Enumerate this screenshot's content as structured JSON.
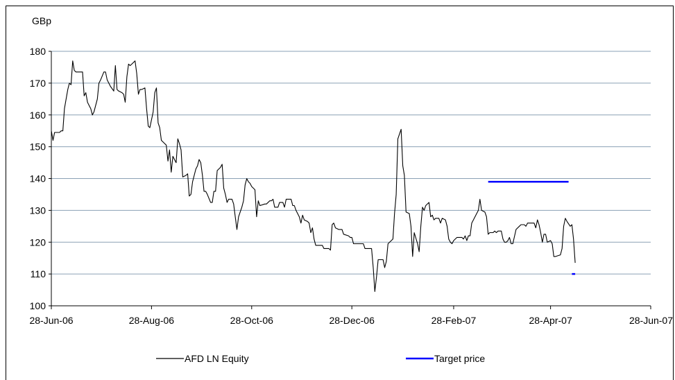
{
  "chart_data": {
    "type": "line",
    "ylabel": "GBp",
    "ylim": [
      100,
      180
    ],
    "yticks": [
      100,
      110,
      120,
      130,
      140,
      150,
      160,
      170,
      180
    ],
    "xlim": [
      "2006-06-28",
      "2007-06-28"
    ],
    "xticks": [
      {
        "date": "2006-06-28",
        "label": "28-Jun-06"
      },
      {
        "date": "2006-08-28",
        "label": "28-Aug-06"
      },
      {
        "date": "2006-10-28",
        "label": "28-Oct-06"
      },
      {
        "date": "2006-12-28",
        "label": "28-Dec-06"
      },
      {
        "date": "2007-02-28",
        "label": "28-Feb-07"
      },
      {
        "date": "2007-04-28",
        "label": "28-Apr-07"
      },
      {
        "date": "2007-06-28",
        "label": "28-Jun-07"
      }
    ],
    "grid": "horizontal",
    "legend": "bottom",
    "series": [
      {
        "name": "AFD LN Equity",
        "color": "#000000",
        "points": [
          [
            "2006-06-28",
            155
          ],
          [
            "2006-06-29",
            152
          ],
          [
            "2006-06-30",
            154.5
          ],
          [
            "2006-07-03",
            154.5
          ],
          [
            "2006-07-04",
            155
          ],
          [
            "2006-07-05",
            155
          ],
          [
            "2006-07-06",
            162
          ],
          [
            "2006-07-08",
            168
          ],
          [
            "2006-07-09",
            170
          ],
          [
            "2006-07-10",
            169.5
          ],
          [
            "2006-07-11",
            177
          ],
          [
            "2006-07-12",
            174
          ],
          [
            "2006-07-13",
            173.5
          ],
          [
            "2006-07-16",
            173.5
          ],
          [
            "2006-07-17",
            173.5
          ],
          [
            "2006-07-18",
            166
          ],
          [
            "2006-07-19",
            167
          ],
          [
            "2006-07-20",
            164
          ],
          [
            "2006-07-21",
            163
          ],
          [
            "2006-07-22",
            162
          ],
          [
            "2006-07-23",
            160
          ],
          [
            "2006-07-24",
            161
          ],
          [
            "2006-07-26",
            165
          ],
          [
            "2006-07-27",
            170
          ],
          [
            "2006-07-28",
            171
          ],
          [
            "2006-07-30",
            173.5
          ],
          [
            "2006-07-31",
            173.5
          ],
          [
            "2006-08-01",
            171
          ],
          [
            "2006-08-03",
            169
          ],
          [
            "2006-08-05",
            167.5
          ],
          [
            "2006-08-06",
            175.5
          ],
          [
            "2006-08-07",
            168
          ],
          [
            "2006-08-08",
            167.5
          ],
          [
            "2006-08-10",
            167
          ],
          [
            "2006-08-11",
            166.5
          ],
          [
            "2006-08-12",
            164
          ],
          [
            "2006-08-13",
            172
          ],
          [
            "2006-08-14",
            176
          ],
          [
            "2006-08-15",
            175.5
          ],
          [
            "2006-08-16",
            176
          ],
          [
            "2006-08-18",
            177
          ],
          [
            "2006-08-19",
            173
          ],
          [
            "2006-08-20",
            166.5
          ],
          [
            "2006-08-21",
            168
          ],
          [
            "2006-08-22",
            168
          ],
          [
            "2006-08-24",
            168.5
          ],
          [
            "2006-08-25",
            162
          ],
          [
            "2006-08-26",
            156.5
          ],
          [
            "2006-08-27",
            156
          ],
          [
            "2006-08-29",
            161
          ],
          [
            "2006-08-30",
            167
          ],
          [
            "2006-08-31",
            168.5
          ],
          [
            "2006-09-01",
            157.5
          ],
          [
            "2006-09-02",
            156
          ],
          [
            "2006-09-03",
            152
          ],
          [
            "2006-09-05",
            151
          ],
          [
            "2006-09-06",
            150.5
          ],
          [
            "2006-09-07",
            145.5
          ],
          [
            "2006-09-08",
            149
          ],
          [
            "2006-09-09",
            142
          ],
          [
            "2006-09-10",
            147
          ],
          [
            "2006-09-11",
            146
          ],
          [
            "2006-09-12",
            145
          ],
          [
            "2006-09-13",
            152.5
          ],
          [
            "2006-09-14",
            151
          ],
          [
            "2006-09-15",
            149
          ],
          [
            "2006-09-16",
            140.5
          ],
          [
            "2006-09-18",
            141
          ],
          [
            "2006-09-19",
            141.5
          ],
          [
            "2006-09-20",
            134.5
          ],
          [
            "2006-09-21",
            135
          ],
          [
            "2006-09-22",
            139
          ],
          [
            "2006-09-24",
            143
          ],
          [
            "2006-09-25",
            144
          ],
          [
            "2006-09-26",
            146
          ],
          [
            "2006-09-27",
            145
          ],
          [
            "2006-09-28",
            141
          ],
          [
            "2006-09-29",
            136
          ],
          [
            "2006-09-30",
            136
          ],
          [
            "2006-10-01",
            135
          ],
          [
            "2006-10-03",
            132.5
          ],
          [
            "2006-10-04",
            132.5
          ],
          [
            "2006-10-05",
            136
          ],
          [
            "2006-10-06",
            136
          ],
          [
            "2006-10-07",
            142.5
          ],
          [
            "2006-10-09",
            143.5
          ],
          [
            "2006-10-10",
            144.5
          ],
          [
            "2006-10-11",
            137
          ],
          [
            "2006-10-12",
            135
          ],
          [
            "2006-10-13",
            132.5
          ],
          [
            "2006-10-14",
            133.5
          ],
          [
            "2006-10-16",
            133.5
          ],
          [
            "2006-10-17",
            132
          ],
          [
            "2006-10-18",
            128
          ],
          [
            "2006-10-19",
            124
          ],
          [
            "2006-10-20",
            128
          ],
          [
            "2006-10-22",
            131
          ],
          [
            "2006-10-23",
            133
          ],
          [
            "2006-10-24",
            138
          ],
          [
            "2006-10-25",
            140
          ],
          [
            "2006-10-26",
            139
          ],
          [
            "2006-10-27",
            138.5
          ],
          [
            "2006-10-28",
            137.5
          ],
          [
            "2006-10-30",
            136.5
          ],
          [
            "2006-10-31",
            128
          ],
          [
            "2006-11-01",
            133
          ],
          [
            "2006-11-02",
            131.5
          ],
          [
            "2006-11-05",
            132
          ],
          [
            "2006-11-06",
            132
          ],
          [
            "2006-11-08",
            133
          ],
          [
            "2006-11-09",
            133
          ],
          [
            "2006-11-10",
            133.5
          ],
          [
            "2006-11-11",
            131
          ],
          [
            "2006-11-13",
            131
          ],
          [
            "2006-11-14",
            132.5
          ],
          [
            "2006-11-16",
            132.5
          ],
          [
            "2006-11-17",
            131
          ],
          [
            "2006-11-18",
            133.5
          ],
          [
            "2006-11-21",
            133.5
          ],
          [
            "2006-11-22",
            131.5
          ],
          [
            "2006-11-23",
            131.5
          ],
          [
            "2006-11-24",
            130
          ],
          [
            "2006-11-26",
            128
          ],
          [
            "2006-11-27",
            126
          ],
          [
            "2006-11-28",
            128.5
          ],
          [
            "2006-11-29",
            127
          ],
          [
            "2006-12-01",
            126.5
          ],
          [
            "2006-12-02",
            126
          ],
          [
            "2006-12-03",
            123
          ],
          [
            "2006-12-04",
            124.5
          ],
          [
            "2006-12-05",
            121
          ],
          [
            "2006-12-06",
            119
          ],
          [
            "2006-12-10",
            119
          ],
          [
            "2006-12-11",
            118
          ],
          [
            "2006-12-14",
            118
          ],
          [
            "2006-12-15",
            117.5
          ],
          [
            "2006-12-16",
            125.5
          ],
          [
            "2006-12-17",
            126
          ],
          [
            "2006-12-18",
            124.5
          ],
          [
            "2006-12-20",
            124
          ],
          [
            "2006-12-22",
            124
          ],
          [
            "2006-12-23",
            122.5
          ],
          [
            "2006-12-26",
            122
          ],
          [
            "2006-12-27",
            121.5
          ],
          [
            "2006-12-28",
            121.5
          ],
          [
            "2006-12-29",
            119.5
          ],
          [
            "2006-12-31",
            119.5
          ],
          [
            "2007-01-04",
            119.5
          ],
          [
            "2007-01-05",
            118
          ],
          [
            "2007-01-09",
            118
          ],
          [
            "2007-01-10",
            112
          ],
          [
            "2007-01-11",
            104.5
          ],
          [
            "2007-01-12",
            109
          ],
          [
            "2007-01-13",
            114.5
          ],
          [
            "2007-01-16",
            114.5
          ],
          [
            "2007-01-17",
            112
          ],
          [
            "2007-01-18",
            114
          ],
          [
            "2007-01-19",
            119.5
          ],
          [
            "2007-01-21",
            120.5
          ],
          [
            "2007-01-22",
            121
          ],
          [
            "2007-01-23",
            129
          ],
          [
            "2007-01-24",
            135
          ],
          [
            "2007-01-25",
            152.5
          ],
          [
            "2007-01-27",
            155.5
          ],
          [
            "2007-01-28",
            144
          ],
          [
            "2007-01-29",
            141
          ],
          [
            "2007-01-30",
            129.5
          ],
          [
            "2007-02-01",
            129
          ],
          [
            "2007-02-02",
            125
          ],
          [
            "2007-02-03",
            115.5
          ],
          [
            "2007-02-04",
            123
          ],
          [
            "2007-02-06",
            119.5
          ],
          [
            "2007-02-07",
            117
          ],
          [
            "2007-02-08",
            125
          ],
          [
            "2007-02-09",
            131
          ],
          [
            "2007-02-10",
            130
          ],
          [
            "2007-02-11",
            131.5
          ],
          [
            "2007-02-13",
            132.5
          ],
          [
            "2007-02-14",
            128
          ],
          [
            "2007-02-15",
            128.5
          ],
          [
            "2007-02-16",
            127
          ],
          [
            "2007-02-17",
            127.5
          ],
          [
            "2007-02-19",
            127.5
          ],
          [
            "2007-02-20",
            126
          ],
          [
            "2007-02-21",
            127.5
          ],
          [
            "2007-02-23",
            127
          ],
          [
            "2007-02-24",
            125
          ],
          [
            "2007-02-25",
            121
          ],
          [
            "2007-02-26",
            120
          ],
          [
            "2007-02-27",
            119.5
          ],
          [
            "2007-02-28",
            120.5
          ],
          [
            "2007-03-02",
            121.5
          ],
          [
            "2007-03-05",
            121.5
          ],
          [
            "2007-03-06",
            121
          ],
          [
            "2007-03-07",
            122
          ],
          [
            "2007-03-08",
            120.5
          ],
          [
            "2007-03-09",
            122
          ],
          [
            "2007-03-10",
            122
          ],
          [
            "2007-03-11",
            126
          ],
          [
            "2007-03-12",
            127
          ],
          [
            "2007-03-14",
            129
          ],
          [
            "2007-03-15",
            130
          ],
          [
            "2007-03-16",
            133.5
          ],
          [
            "2007-03-17",
            130
          ],
          [
            "2007-03-19",
            129.5
          ],
          [
            "2007-03-20",
            128
          ],
          [
            "2007-03-21",
            122.5
          ],
          [
            "2007-03-22",
            123
          ],
          [
            "2007-03-24",
            123
          ],
          [
            "2007-03-25",
            123.5
          ],
          [
            "2007-03-26",
            123
          ],
          [
            "2007-03-27",
            123.5
          ],
          [
            "2007-03-29",
            123.5
          ],
          [
            "2007-03-30",
            121
          ],
          [
            "2007-03-31",
            120
          ],
          [
            "2007-04-01",
            120
          ],
          [
            "2007-04-02",
            120.5
          ],
          [
            "2007-04-03",
            121.5
          ],
          [
            "2007-04-04",
            119.5
          ],
          [
            "2007-04-05",
            119.5
          ],
          [
            "2007-04-07",
            124
          ],
          [
            "2007-04-09",
            125
          ],
          [
            "2007-04-10",
            125.5
          ],
          [
            "2007-04-12",
            125.5
          ],
          [
            "2007-04-13",
            125
          ],
          [
            "2007-04-14",
            126
          ],
          [
            "2007-04-17",
            126
          ],
          [
            "2007-04-18",
            126
          ],
          [
            "2007-04-19",
            124.5
          ],
          [
            "2007-04-20",
            127
          ],
          [
            "2007-04-21",
            125.5
          ],
          [
            "2007-04-22",
            123
          ],
          [
            "2007-04-23",
            120
          ],
          [
            "2007-04-24",
            122.5
          ],
          [
            "2007-04-25",
            122.5
          ],
          [
            "2007-04-26",
            120
          ],
          [
            "2007-04-28",
            120.5
          ],
          [
            "2007-04-29",
            119.5
          ],
          [
            "2007-04-30",
            115.5
          ],
          [
            "2007-05-01",
            115.5
          ],
          [
            "2007-05-04",
            116
          ],
          [
            "2007-05-05",
            118
          ],
          [
            "2007-05-06",
            125
          ],
          [
            "2007-05-07",
            127.5
          ],
          [
            "2007-05-08",
            126.5
          ],
          [
            "2007-05-10",
            125
          ],
          [
            "2007-05-11",
            125.5
          ],
          [
            "2007-05-12",
            121
          ],
          [
            "2007-05-13",
            113.5
          ]
        ]
      },
      {
        "name": "Target price",
        "color": "#0000ff",
        "segments": [
          [
            [
              "2007-03-21",
              139
            ],
            [
              "2007-05-09",
              139
            ]
          ],
          [
            [
              "2007-05-11",
              110
            ],
            [
              "2007-05-13",
              110
            ]
          ]
        ]
      }
    ]
  }
}
